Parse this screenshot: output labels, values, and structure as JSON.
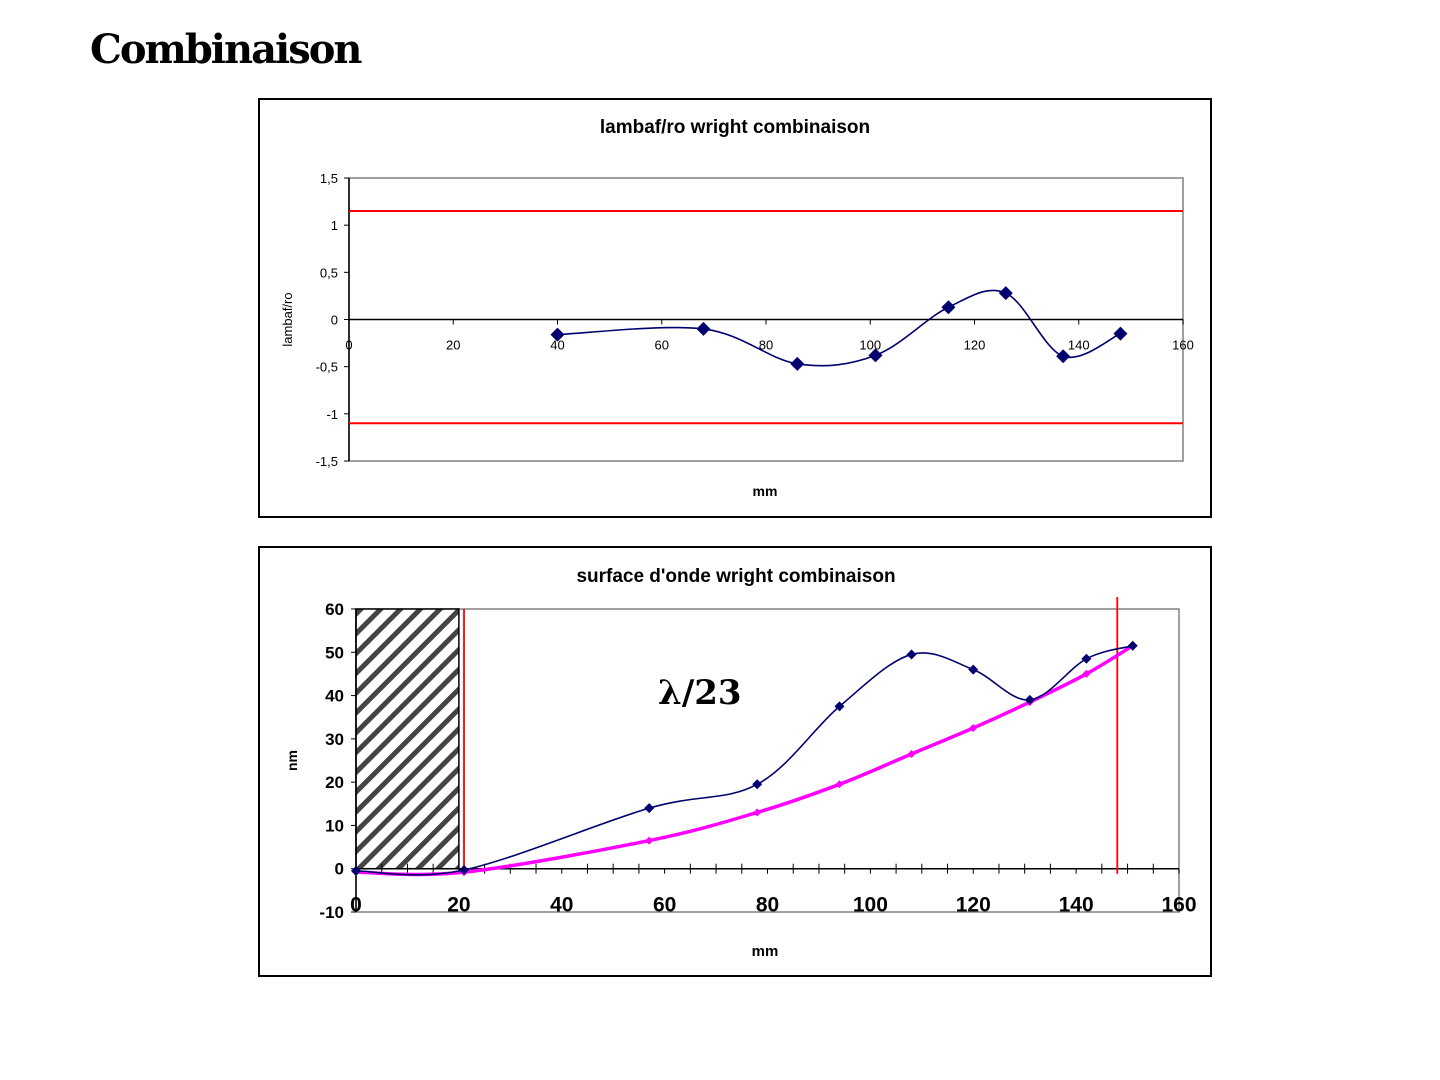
{
  "page": {
    "title": "Combinaison"
  },
  "colors": {
    "series_blue": "#00006e",
    "limit_red": "#ff0000",
    "fit_magenta": "#ff00ff",
    "axis_gray": "#808080"
  },
  "chart_data": [
    {
      "type": "line",
      "title": "lambaf/ro wright combinaison",
      "xlabel": "mm",
      "ylabel": "lambaf/ro",
      "xlim": [
        0,
        160
      ],
      "ylim": [
        -1.5,
        1.5
      ],
      "xticks": [
        0,
        20,
        40,
        60,
        80,
        100,
        120,
        140,
        160
      ],
      "xtick_labels": [
        "0",
        "20",
        "40",
        "60",
        "80",
        "100",
        "120",
        "140",
        "160"
      ],
      "yticks": [
        -1.5,
        -1,
        -0.5,
        0,
        0.5,
        1,
        1.5
      ],
      "ytick_labels": [
        "-1,5",
        "-1",
        "-0,5",
        "0",
        "0,5",
        "1",
        "1,5"
      ],
      "grid": false,
      "series": [
        {
          "marker": "diamond",
          "x": [
            40,
            68,
            86,
            101,
            115,
            126,
            137,
            148
          ],
          "y": [
            -0.16,
            -0.1,
            -0.47,
            -0.38,
            0.13,
            0.28,
            -0.39,
            -0.15
          ]
        }
      ],
      "reference_lines": [
        {
          "axis": "y",
          "value": 1.15
        },
        {
          "axis": "y",
          "value": -1.1
        }
      ]
    },
    {
      "type": "line",
      "title": "surface d'onde wright combinaison",
      "xlabel": "mm",
      "ylabel": "nm",
      "xlim": [
        0,
        160
      ],
      "ylim": [
        -10,
        60
      ],
      "xticks": [
        0,
        20,
        40,
        60,
        80,
        100,
        120,
        140,
        160
      ],
      "xtick_labels": [
        "0",
        "20",
        "40",
        "60",
        "80",
        "100",
        "120",
        "140",
        "160"
      ],
      "yticks": [
        -10,
        0,
        10,
        20,
        30,
        40,
        50,
        60
      ],
      "ytick_labels": [
        "-10",
        "0",
        "10",
        "20",
        "30",
        "40",
        "50",
        "60"
      ],
      "grid": false,
      "annotation": "λ/23",
      "series": [
        {
          "marker": "diamond",
          "x": [
            0,
            21,
            57,
            78,
            94,
            108,
            120,
            131,
            142,
            151
          ],
          "y": [
            -0.5,
            -0.3,
            14,
            19.5,
            37.5,
            49.5,
            46,
            39,
            48.5,
            51.5
          ]
        },
        {
          "marker": "diamond",
          "x": [
            0,
            21,
            57,
            78,
            94,
            108,
            120,
            131,
            142,
            151
          ],
          "y": [
            -0.8,
            -0.8,
            6.5,
            13,
            19.5,
            26.5,
            32.5,
            38.5,
            45,
            51.5
          ]
        }
      ],
      "reference_lines": [
        {
          "axis": "x",
          "value": 21
        },
        {
          "axis": "x",
          "value": 148
        }
      ],
      "hatched_region": {
        "x": [
          0,
          20
        ],
        "y": [
          0,
          60
        ]
      }
    }
  ]
}
